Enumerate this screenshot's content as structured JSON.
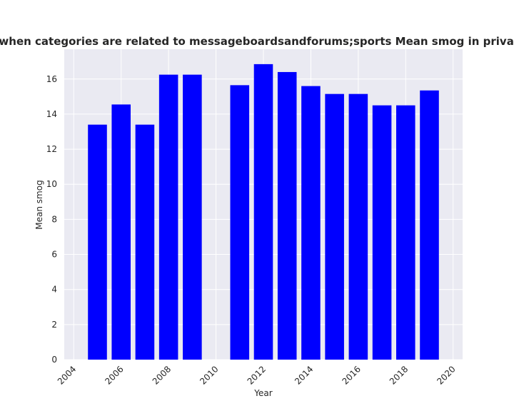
{
  "chart_data": {
    "type": "bar",
    "title": "Privacy policies when categories are related to messageboardsandforums;sports Mean smog in privacy policies by year",
    "xlabel": "Year",
    "ylabel": "Mean smog",
    "x": [
      2005,
      2006,
      2007,
      2008,
      2009,
      2011,
      2012,
      2013,
      2014,
      2015,
      2016,
      2017,
      2018,
      2019
    ],
    "values": [
      13.4,
      14.55,
      13.4,
      16.25,
      16.25,
      15.65,
      16.85,
      16.4,
      15.6,
      15.15,
      15.15,
      14.5,
      14.5,
      15.35
    ],
    "xlim": [
      2003.6,
      2020.4
    ],
    "ylim": [
      0,
      17.7
    ],
    "xticks": [
      2004,
      2006,
      2008,
      2010,
      2012,
      2014,
      2016,
      2018,
      2020
    ],
    "yticks": [
      0,
      2,
      4,
      6,
      8,
      10,
      12,
      14,
      16
    ],
    "bar_color": "#0000ff",
    "background_color": "#eaeaf2",
    "grid": true,
    "grid_color": "#ffffff"
  }
}
